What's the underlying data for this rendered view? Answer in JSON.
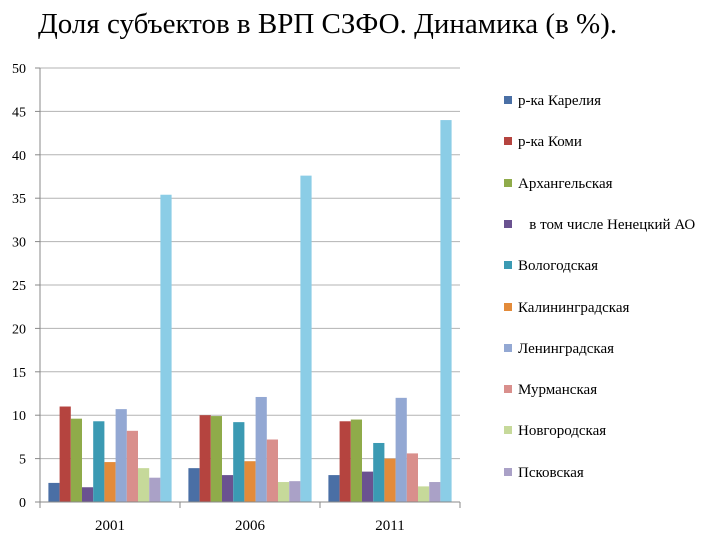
{
  "title": "Доля субъектов в ВРП СЗФО. Динамика (в %).",
  "chart_data": {
    "type": "bar",
    "categories": [
      "2001",
      "2006",
      "2011"
    ],
    "ylim": [
      0,
      50
    ],
    "yticks": [
      0,
      5,
      10,
      15,
      20,
      25,
      30,
      35,
      40,
      45,
      50
    ],
    "grid": true,
    "legend_position": "right",
    "series": [
      {
        "name": "р-ка Карелия",
        "color": "#4a6fa5",
        "values": [
          2.2,
          3.9,
          3.1
        ]
      },
      {
        "name": "р-ка Коми",
        "color": "#b5443f",
        "values": [
          11.0,
          10.0,
          9.3
        ]
      },
      {
        "name": "Архангельская",
        "color": "#8fab4a",
        "values": [
          9.6,
          9.9,
          9.5
        ]
      },
      {
        "name": "   в том числе Ненецкий АО",
        "color": "#6a5290",
        "values": [
          1.7,
          3.1,
          3.5
        ]
      },
      {
        "name": "Вологодская",
        "color": "#3b9ab3",
        "values": [
          9.3,
          9.2,
          6.8
        ]
      },
      {
        "name": "Калининградская",
        "color": "#e38b3a",
        "values": [
          4.6,
          4.7,
          5.0
        ]
      },
      {
        "name": "Ленинградская",
        "color": "#93a8d3",
        "values": [
          10.7,
          12.1,
          12.0
        ]
      },
      {
        "name": "Мурманская",
        "color": "#d98f8c",
        "values": [
          8.2,
          7.2,
          5.6
        ]
      },
      {
        "name": "Новгородская",
        "color": "#c6d99a",
        "values": [
          3.9,
          2.3,
          1.8
        ]
      },
      {
        "name": "Псковская",
        "color": "#aaa1c7",
        "values": [
          2.8,
          2.4,
          2.3
        ]
      },
      {
        "name": "",
        "color": "#8bcde6",
        "values": [
          35.4,
          37.6,
          44.0
        ]
      }
    ]
  }
}
